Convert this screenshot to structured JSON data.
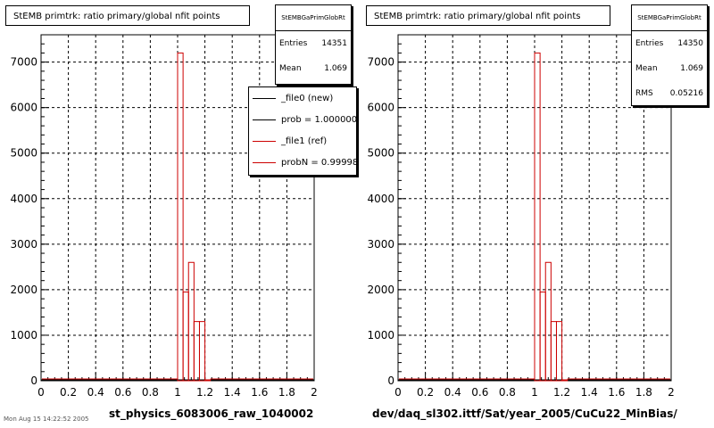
{
  "panels": [
    {
      "title": "StEMB primtrk: ratio primary/global nfit points",
      "stats": {
        "name": "StEMBGaPrimGlobRt",
        "rows": [
          {
            "label": "Entries",
            "value": "14351"
          },
          {
            "label": "Mean",
            "value": "1.069"
          }
        ]
      },
      "legend": [
        {
          "text": "_file0 (new)",
          "color": "#000000"
        },
        {
          "text": "prob = 1.000000",
          "color": "#000000"
        },
        {
          "text": "_file1 (ref)",
          "color": "#cc0000"
        },
        {
          "text": "probN = 0.999989",
          "color": "#cc0000"
        }
      ],
      "xlabel": "st_physics_6083006_raw_1040002"
    },
    {
      "title": "StEMB primtrk: ratio primary/global nfit points",
      "stats": {
        "name": "StEMBGaPrimGlobRt",
        "rows": [
          {
            "label": "Entries",
            "value": "14350"
          },
          {
            "label": "Mean",
            "value": "1.069"
          },
          {
            "label": "RMS",
            "value": "0.05216"
          }
        ]
      },
      "legend": [],
      "xlabel": "dev/daq_sl302.ittf/Sat/year_2005/CuCu22_MinBias/"
    }
  ],
  "footer": "Mon Aug 15 14:22:52 2005",
  "chart_data": [
    {
      "type": "bar",
      "x_range": [
        0,
        2
      ],
      "ylim": [
        0,
        7600
      ],
      "x_ticks": [
        "0",
        "0.2",
        "0.4",
        "0.6",
        "0.8",
        "1",
        "1.2",
        "1.4",
        "1.6",
        "1.8",
        "2"
      ],
      "y_ticks": [
        "0",
        "1000",
        "2000",
        "3000",
        "4000",
        "5000",
        "6000",
        "7000"
      ],
      "grid": true,
      "bins": [
        {
          "lo": 1.0,
          "hi": 1.04,
          "value": 7200
        },
        {
          "lo": 1.04,
          "hi": 1.08,
          "value": 1950
        },
        {
          "lo": 1.08,
          "hi": 1.12,
          "value": 2600
        },
        {
          "lo": 1.12,
          "hi": 1.16,
          "value": 1300
        },
        {
          "lo": 1.16,
          "hi": 1.2,
          "value": 1300
        },
        {
          "lo": 1.2,
          "hi": 1.24,
          "value": 20
        }
      ],
      "series": [
        {
          "name": "_file0 (new)",
          "color": "#000000"
        },
        {
          "name": "_file1 (ref)",
          "color": "#cc0000"
        }
      ],
      "legend_position": "top-right"
    },
    {
      "type": "bar",
      "x_range": [
        0,
        2
      ],
      "ylim": [
        0,
        7600
      ],
      "x_ticks": [
        "0",
        "0.2",
        "0.4",
        "0.6",
        "0.8",
        "1",
        "1.2",
        "1.4",
        "1.6",
        "1.8",
        "2"
      ],
      "y_ticks": [
        "0",
        "1000",
        "2000",
        "3000",
        "4000",
        "5000",
        "6000",
        "7000"
      ],
      "grid": true,
      "bins": [
        {
          "lo": 1.0,
          "hi": 1.04,
          "value": 7200
        },
        {
          "lo": 1.04,
          "hi": 1.08,
          "value": 1950
        },
        {
          "lo": 1.08,
          "hi": 1.12,
          "value": 2600
        },
        {
          "lo": 1.12,
          "hi": 1.16,
          "value": 1300
        },
        {
          "lo": 1.16,
          "hi": 1.2,
          "value": 1300
        },
        {
          "lo": 1.2,
          "hi": 1.24,
          "value": 20
        }
      ],
      "series": [
        {
          "name": "",
          "color": "#cc0000"
        }
      ]
    }
  ]
}
